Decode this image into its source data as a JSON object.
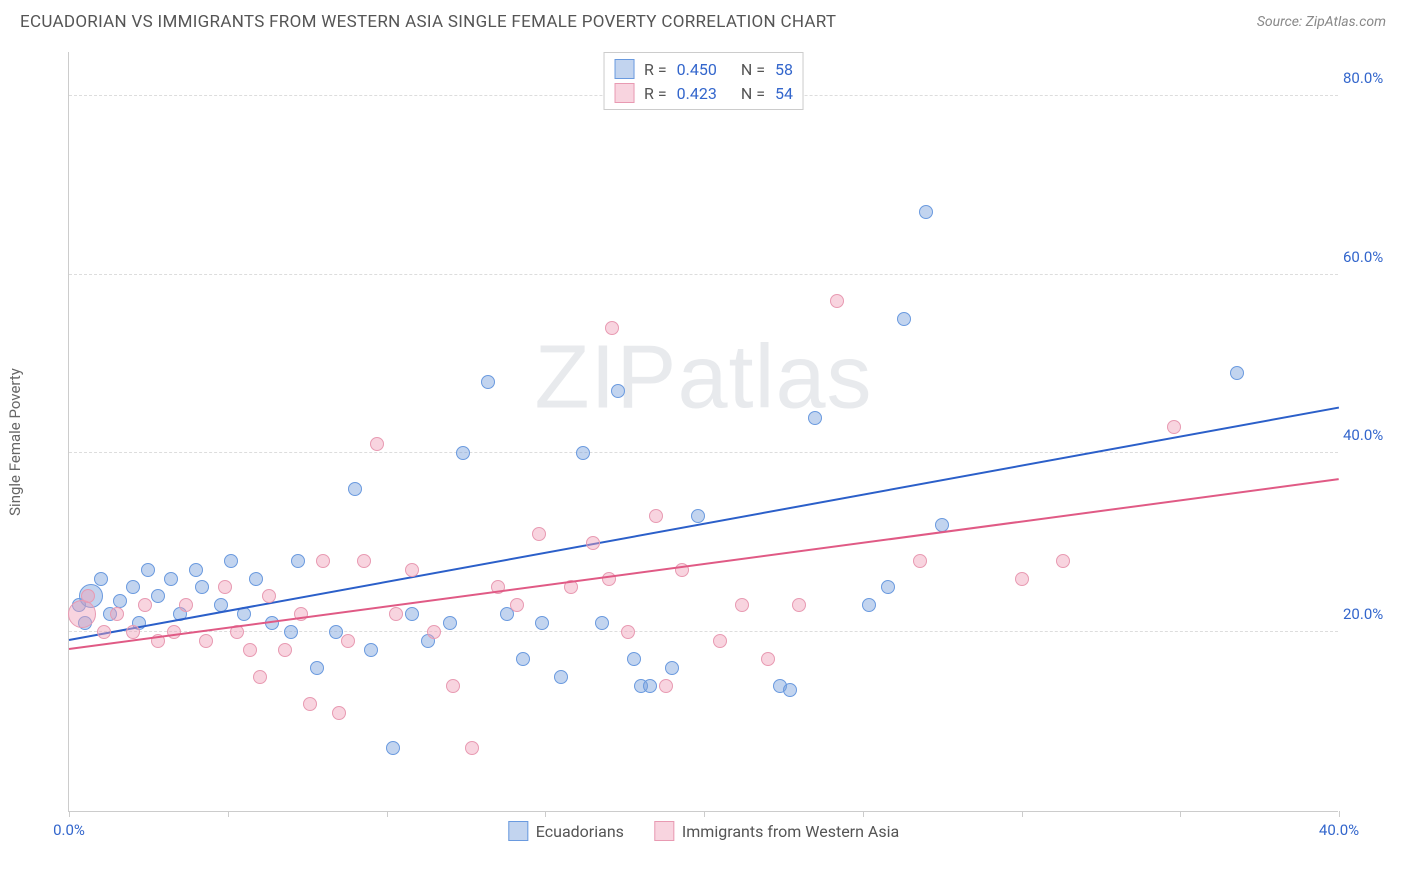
{
  "header": {
    "title": "ECUADORIAN VS IMMIGRANTS FROM WESTERN ASIA SINGLE FEMALE POVERTY CORRELATION CHART",
    "source": "Source: ZipAtlas.com"
  },
  "chart": {
    "type": "scatter",
    "y_label": "Single Female Poverty",
    "watermark": "ZIPatlas",
    "xlim": [
      0,
      40
    ],
    "ylim": [
      0,
      85
    ],
    "x_ticks": [
      0,
      5,
      10,
      15,
      20,
      25,
      30,
      35,
      40
    ],
    "x_tick_labels": {
      "0": "0.0%",
      "40": "40.0%"
    },
    "y_ticks": [
      20,
      40,
      60,
      80
    ],
    "y_tick_labels": {
      "20": "20.0%",
      "40": "40.0%",
      "60": "60.0%",
      "80": "80.0%"
    },
    "background_color": "#ffffff",
    "grid_color": "#dddddd",
    "axis_color": "#cccccc",
    "tick_label_color": "#3366cc",
    "label_fontsize": 15,
    "title_fontsize": 17,
    "series": [
      {
        "name": "Ecuadorians",
        "fill": "rgba(120,160,220,0.45)",
        "stroke": "#6a9adf",
        "trend_color": "#2b5fc9",
        "R": "0.450",
        "N": "58",
        "trend": {
          "x0": 0,
          "y0": 19,
          "x1": 40,
          "y1": 45
        },
        "points": [
          {
            "x": 0.3,
            "y": 23,
            "r": 7
          },
          {
            "x": 0.5,
            "y": 21,
            "r": 7
          },
          {
            "x": 0.7,
            "y": 24,
            "r": 12
          },
          {
            "x": 1.0,
            "y": 26,
            "r": 7
          },
          {
            "x": 1.3,
            "y": 22,
            "r": 7
          },
          {
            "x": 1.6,
            "y": 23.5,
            "r": 7
          },
          {
            "x": 2.0,
            "y": 25,
            "r": 7
          },
          {
            "x": 2.2,
            "y": 21,
            "r": 7
          },
          {
            "x": 2.5,
            "y": 27,
            "r": 7
          },
          {
            "x": 2.8,
            "y": 24,
            "r": 7
          },
          {
            "x": 3.2,
            "y": 26,
            "r": 7
          },
          {
            "x": 3.5,
            "y": 22,
            "r": 7
          },
          {
            "x": 4.0,
            "y": 27,
            "r": 7
          },
          {
            "x": 4.2,
            "y": 25,
            "r": 7
          },
          {
            "x": 4.8,
            "y": 23,
            "r": 7
          },
          {
            "x": 5.1,
            "y": 28,
            "r": 7
          },
          {
            "x": 5.5,
            "y": 22,
            "r": 7
          },
          {
            "x": 5.9,
            "y": 26,
            "r": 7
          },
          {
            "x": 6.4,
            "y": 21,
            "r": 7
          },
          {
            "x": 7.0,
            "y": 20,
            "r": 7
          },
          {
            "x": 7.2,
            "y": 28,
            "r": 7
          },
          {
            "x": 7.8,
            "y": 16,
            "r": 7
          },
          {
            "x": 8.4,
            "y": 20,
            "r": 7
          },
          {
            "x": 9.0,
            "y": 36,
            "r": 7
          },
          {
            "x": 9.5,
            "y": 18,
            "r": 7
          },
          {
            "x": 10.2,
            "y": 7,
            "r": 7
          },
          {
            "x": 10.8,
            "y": 22,
            "r": 7
          },
          {
            "x": 11.3,
            "y": 19,
            "r": 7
          },
          {
            "x": 12.0,
            "y": 21,
            "r": 7
          },
          {
            "x": 12.4,
            "y": 40,
            "r": 7
          },
          {
            "x": 13.2,
            "y": 48,
            "r": 7
          },
          {
            "x": 13.8,
            "y": 22,
            "r": 7
          },
          {
            "x": 14.3,
            "y": 17,
            "r": 7
          },
          {
            "x": 14.9,
            "y": 21,
            "r": 7
          },
          {
            "x": 15.5,
            "y": 15,
            "r": 7
          },
          {
            "x": 16.2,
            "y": 40,
            "r": 7
          },
          {
            "x": 16.8,
            "y": 21,
            "r": 7
          },
          {
            "x": 17.3,
            "y": 47,
            "r": 7
          },
          {
            "x": 17.8,
            "y": 17,
            "r": 7
          },
          {
            "x": 18.0,
            "y": 14,
            "r": 7
          },
          {
            "x": 18.3,
            "y": 14,
            "r": 7
          },
          {
            "x": 19.0,
            "y": 16,
            "r": 7
          },
          {
            "x": 19.8,
            "y": 33,
            "r": 7
          },
          {
            "x": 22.4,
            "y": 14,
            "r": 7
          },
          {
            "x": 22.7,
            "y": 13.5,
            "r": 7
          },
          {
            "x": 23.5,
            "y": 44,
            "r": 7
          },
          {
            "x": 25.2,
            "y": 23,
            "r": 7
          },
          {
            "x": 25.8,
            "y": 25,
            "r": 7
          },
          {
            "x": 26.3,
            "y": 55,
            "r": 7
          },
          {
            "x": 27.0,
            "y": 67,
            "r": 7
          },
          {
            "x": 27.5,
            "y": 32,
            "r": 7
          },
          {
            "x": 36.8,
            "y": 49,
            "r": 7
          }
        ]
      },
      {
        "name": "Immigrants from Western Asia",
        "fill": "rgba(240,160,185,0.45)",
        "stroke": "#e89ab2",
        "trend_color": "#e05a85",
        "R": "0.423",
        "N": "54",
        "trend": {
          "x0": 0,
          "y0": 18,
          "x1": 40,
          "y1": 37
        },
        "points": [
          {
            "x": 0.4,
            "y": 22,
            "r": 14
          },
          {
            "x": 0.6,
            "y": 24,
            "r": 7
          },
          {
            "x": 1.1,
            "y": 20,
            "r": 7
          },
          {
            "x": 1.5,
            "y": 22,
            "r": 7
          },
          {
            "x": 2.0,
            "y": 20,
            "r": 7
          },
          {
            "x": 2.4,
            "y": 23,
            "r": 7
          },
          {
            "x": 2.8,
            "y": 19,
            "r": 7
          },
          {
            "x": 3.3,
            "y": 20,
            "r": 7
          },
          {
            "x": 3.7,
            "y": 23,
            "r": 7
          },
          {
            "x": 4.3,
            "y": 19,
            "r": 7
          },
          {
            "x": 4.9,
            "y": 25,
            "r": 7
          },
          {
            "x": 5.3,
            "y": 20,
            "r": 7
          },
          {
            "x": 5.7,
            "y": 18,
            "r": 7
          },
          {
            "x": 6.0,
            "y": 15,
            "r": 7
          },
          {
            "x": 6.3,
            "y": 24,
            "r": 7
          },
          {
            "x": 6.8,
            "y": 18,
            "r": 7
          },
          {
            "x": 7.3,
            "y": 22,
            "r": 7
          },
          {
            "x": 7.6,
            "y": 12,
            "r": 7
          },
          {
            "x": 8.0,
            "y": 28,
            "r": 7
          },
          {
            "x": 8.5,
            "y": 11,
            "r": 7
          },
          {
            "x": 8.8,
            "y": 19,
            "r": 7
          },
          {
            "x": 9.3,
            "y": 28,
            "r": 7
          },
          {
            "x": 9.7,
            "y": 41,
            "r": 7
          },
          {
            "x": 10.3,
            "y": 22,
            "r": 7
          },
          {
            "x": 10.8,
            "y": 27,
            "r": 7
          },
          {
            "x": 11.5,
            "y": 20,
            "r": 7
          },
          {
            "x": 12.1,
            "y": 14,
            "r": 7
          },
          {
            "x": 12.7,
            "y": 7,
            "r": 7
          },
          {
            "x": 13.5,
            "y": 25,
            "r": 7
          },
          {
            "x": 14.1,
            "y": 23,
            "r": 7
          },
          {
            "x": 14.8,
            "y": 31,
            "r": 7
          },
          {
            "x": 15.8,
            "y": 25,
            "r": 7
          },
          {
            "x": 16.5,
            "y": 30,
            "r": 7
          },
          {
            "x": 17.0,
            "y": 26,
            "r": 7
          },
          {
            "x": 17.1,
            "y": 54,
            "r": 7
          },
          {
            "x": 17.6,
            "y": 20,
            "r": 7
          },
          {
            "x": 18.5,
            "y": 33,
            "r": 7
          },
          {
            "x": 18.8,
            "y": 14,
            "r": 7
          },
          {
            "x": 19.3,
            "y": 27,
            "r": 7
          },
          {
            "x": 20.5,
            "y": 19,
            "r": 7
          },
          {
            "x": 21.2,
            "y": 23,
            "r": 7
          },
          {
            "x": 22.0,
            "y": 17,
            "r": 7
          },
          {
            "x": 23.0,
            "y": 23,
            "r": 7
          },
          {
            "x": 24.2,
            "y": 57,
            "r": 7
          },
          {
            "x": 26.8,
            "y": 28,
            "r": 7
          },
          {
            "x": 30.0,
            "y": 26,
            "r": 7
          },
          {
            "x": 31.3,
            "y": 28,
            "r": 7
          },
          {
            "x": 34.8,
            "y": 43,
            "r": 7
          }
        ]
      }
    ]
  },
  "legend_top": {
    "rows": [
      {
        "swatch_fill": "rgba(120,160,220,0.45)",
        "swatch_stroke": "#6a9adf",
        "r_label": "R =",
        "r_val": "0.450",
        "n_label": "N =",
        "n_val": "58"
      },
      {
        "swatch_fill": "rgba(240,160,185,0.45)",
        "swatch_stroke": "#e89ab2",
        "r_label": "R =",
        "r_val": "0.423",
        "n_label": "N =",
        "n_val": "54"
      }
    ]
  },
  "legend_bottom": {
    "items": [
      {
        "swatch_fill": "rgba(120,160,220,0.45)",
        "swatch_stroke": "#6a9adf",
        "label": "Ecuadorians"
      },
      {
        "swatch_fill": "rgba(240,160,185,0.45)",
        "swatch_stroke": "#e89ab2",
        "label": "Immigrants from Western Asia"
      }
    ]
  }
}
